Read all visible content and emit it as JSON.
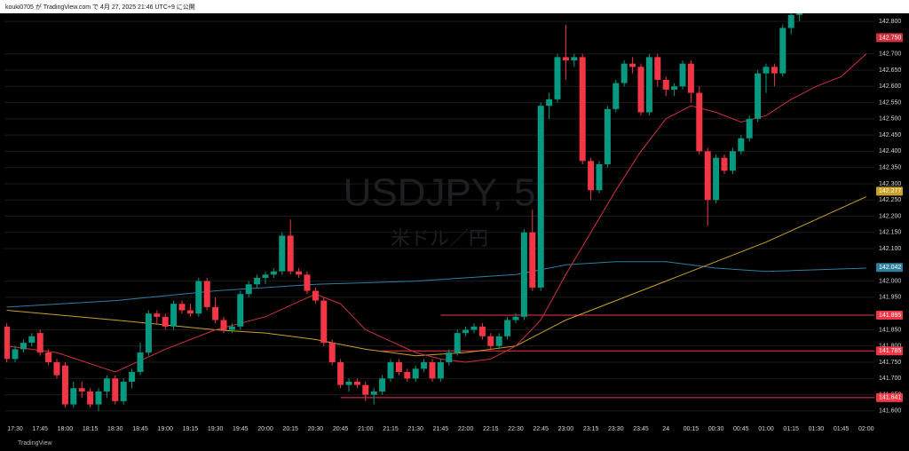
{
  "header": "kouki0705 が TradingView.com で 4月 27, 2025 21:46 UTC+9 に公開",
  "watermark": {
    "symbol": "USDJPY, 5",
    "name": "米ドル／円"
  },
  "footer": "TradingView",
  "chart_data": {
    "type": "candlestick",
    "categories": [
      "17:25",
      "17:30",
      "17:35",
      "17:40",
      "17:45",
      "17:50",
      "17:55",
      "18:00",
      "18:05",
      "18:10",
      "18:15",
      "18:20",
      "18:25",
      "18:30",
      "18:35",
      "18:40",
      "18:45",
      "18:50",
      "18:55",
      "19:00",
      "19:05",
      "19:10",
      "19:15",
      "19:20",
      "19:25",
      "19:30",
      "19:35",
      "19:40",
      "19:45",
      "19:50",
      "19:55",
      "20:00",
      "20:05",
      "20:10",
      "20:15",
      "20:20",
      "20:25",
      "20:30",
      "20:35",
      "20:40",
      "20:45",
      "20:50",
      "20:55",
      "21:00",
      "21:05",
      "21:10",
      "21:15",
      "21:20",
      "21:25",
      "21:30",
      "21:35",
      "21:40",
      "21:45",
      "21:50",
      "21:55",
      "22:00",
      "22:05",
      "22:10",
      "22:15",
      "22:20",
      "22:25",
      "22:30",
      "22:35",
      "22:40",
      "22:45",
      "22:50",
      "22:55",
      "23:00",
      "23:05",
      "23:10",
      "23:15",
      "23:20",
      "23:25",
      "23:30",
      "23:35",
      "23:40",
      "23:45",
      "23:50",
      "23:55",
      "00:00",
      "00:05",
      "00:10",
      "00:15",
      "00:20",
      "00:25",
      "00:30",
      "00:35",
      "00:40",
      "00:45",
      "00:50",
      "00:55",
      "01:00",
      "01:05",
      "01:10",
      "01:15",
      "01:20"
    ],
    "open": [
      141.86,
      141.76,
      141.79,
      141.81,
      141.84,
      141.78,
      141.75,
      141.74,
      141.62,
      141.67,
      141.66,
      141.62,
      141.66,
      141.7,
      141.63,
      141.69,
      141.72,
      141.78,
      141.9,
      141.89,
      141.86,
      141.93,
      141.91,
      141.9,
      142.0,
      141.92,
      141.88,
      141.85,
      141.86,
      141.96,
      141.99,
      142.01,
      142.02,
      142.03,
      142.14,
      142.03,
      142.02,
      141.97,
      141.94,
      141.81,
      141.75,
      141.68,
      141.69,
      141.68,
      141.65,
      141.66,
      141.7,
      141.75,
      141.72,
      141.7,
      141.73,
      141.75,
      141.7,
      141.75,
      141.78,
      141.84,
      141.85,
      141.86,
      141.83,
      141.8,
      141.83,
      141.88,
      141.89,
      142.15,
      141.98,
      142.54,
      142.56,
      142.69,
      142.68,
      142.69,
      142.37,
      142.28,
      142.36,
      142.53,
      142.61,
      142.67,
      142.66,
      142.52,
      142.69,
      142.62,
      142.59,
      142.6,
      142.67,
      142.58,
      142.4,
      142.25,
      142.38,
      142.34,
      142.4,
      142.44,
      142.5,
      142.64,
      142.66,
      142.64,
      142.78,
      142.82
    ],
    "high": [
      141.87,
      141.8,
      141.82,
      141.84,
      141.85,
      141.79,
      141.76,
      141.75,
      141.69,
      141.69,
      141.67,
      141.67,
      141.71,
      141.71,
      141.7,
      141.73,
      141.81,
      141.91,
      141.91,
      141.9,
      141.94,
      141.94,
      141.93,
      142.01,
      142.01,
      141.95,
      141.89,
      141.87,
      141.97,
      142.0,
      142.02,
      142.03,
      142.04,
      142.15,
      142.19,
      142.04,
      142.03,
      141.98,
      141.95,
      141.82,
      141.76,
      141.7,
      141.7,
      141.69,
      141.67,
      141.71,
      141.76,
      141.76,
      141.73,
      141.74,
      141.76,
      141.76,
      141.76,
      141.79,
      141.85,
      141.86,
      141.87,
      141.87,
      141.84,
      141.84,
      141.89,
      141.9,
      142.16,
      142.22,
      142.55,
      142.58,
      142.7,
      142.79,
      142.7,
      142.7,
      142.38,
      142.37,
      142.54,
      142.62,
      142.68,
      142.69,
      142.67,
      142.7,
      142.7,
      142.63,
      142.61,
      142.68,
      142.68,
      142.6,
      142.41,
      142.39,
      142.39,
      142.41,
      142.45,
      142.51,
      142.65,
      142.67,
      142.67,
      142.79,
      142.84,
      142.86
    ],
    "low": [
      141.75,
      141.75,
      141.78,
      141.8,
      141.77,
      141.74,
      141.7,
      141.61,
      141.61,
      141.64,
      141.61,
      141.6,
      141.64,
      141.62,
      141.62,
      141.67,
      141.71,
      141.77,
      141.87,
      141.85,
      141.85,
      141.9,
      141.89,
      141.89,
      141.91,
      141.87,
      141.84,
      141.84,
      141.85,
      141.95,
      141.98,
      141.99,
      142.01,
      142.02,
      142.02,
      142.01,
      141.96,
      141.93,
      141.8,
      141.74,
      141.67,
      141.66,
      141.67,
      141.63,
      141.62,
      141.65,
      141.69,
      141.71,
      141.69,
      141.69,
      141.72,
      141.69,
      141.69,
      141.74,
      141.77,
      141.83,
      141.84,
      141.82,
      141.79,
      141.79,
      141.82,
      141.87,
      141.88,
      141.97,
      141.97,
      142.5,
      142.55,
      142.62,
      142.66,
      142.36,
      142.25,
      142.27,
      142.35,
      142.52,
      142.6,
      142.64,
      142.51,
      142.51,
      142.6,
      142.57,
      142.57,
      142.59,
      142.55,
      142.39,
      142.17,
      142.24,
      142.33,
      142.33,
      142.39,
      142.43,
      142.49,
      142.58,
      142.6,
      142.63,
      142.76,
      142.8
    ],
    "close": [
      141.76,
      141.79,
      141.81,
      141.83,
      141.78,
      141.75,
      141.71,
      141.62,
      141.67,
      141.66,
      141.62,
      141.66,
      141.7,
      141.63,
      141.69,
      141.72,
      141.78,
      141.9,
      141.89,
      141.86,
      141.93,
      141.91,
      141.9,
      142.0,
      141.92,
      141.88,
      141.85,
      141.86,
      141.96,
      141.99,
      142.01,
      142.02,
      142.03,
      142.14,
      142.03,
      142.02,
      141.97,
      141.94,
      141.81,
      141.75,
      141.68,
      141.69,
      141.68,
      141.65,
      141.66,
      141.7,
      141.75,
      141.72,
      141.7,
      141.73,
      141.75,
      141.7,
      141.75,
      141.78,
      141.84,
      141.85,
      141.86,
      141.83,
      141.8,
      141.83,
      141.88,
      141.89,
      142.15,
      141.98,
      142.54,
      142.56,
      142.69,
      142.68,
      142.69,
      142.37,
      142.28,
      142.36,
      142.53,
      142.61,
      142.67,
      142.66,
      142.52,
      142.69,
      142.62,
      142.59,
      142.6,
      142.67,
      142.58,
      142.4,
      142.25,
      142.38,
      142.34,
      142.4,
      142.44,
      142.5,
      142.64,
      142.66,
      142.64,
      142.78,
      142.82,
      142.85
    ],
    "up_color": "#089981",
    "down_color": "#f23645",
    "overlays": [
      {
        "color": "#2e7fa0",
        "x": [
          "17:25",
          "18:30",
          "19:30",
          "20:30",
          "21:30",
          "22:30",
          "23:00",
          "23:30",
          "00:00",
          "00:30",
          "01:00",
          "02:00"
        ],
        "values": [
          141.92,
          141.94,
          141.97,
          141.99,
          142.0,
          142.02,
          142.05,
          142.06,
          142.06,
          142.04,
          142.03,
          142.04
        ]
      },
      {
        "color": "#c9a227",
        "x": [
          "17:25",
          "18:30",
          "19:30",
          "20:00",
          "20:30",
          "21:00",
          "21:30",
          "22:00",
          "22:30",
          "23:00",
          "23:30",
          "00:00",
          "00:30",
          "01:00",
          "01:30",
          "02:00"
        ],
        "values": [
          141.91,
          141.88,
          141.85,
          141.84,
          141.82,
          141.79,
          141.77,
          141.78,
          141.8,
          141.88,
          141.94,
          142.0,
          142.06,
          142.12,
          142.19,
          142.26
        ]
      },
      {
        "color": "#d0303f",
        "x": [
          "17:25",
          "17:55",
          "18:30",
          "19:00",
          "19:30",
          "20:00",
          "20:30",
          "20:45",
          "21:00",
          "21:30",
          "21:45",
          "22:00",
          "22:15",
          "22:30",
          "22:45",
          "23:00",
          "23:15",
          "23:30",
          "23:45",
          "00:00",
          "00:15",
          "00:30",
          "00:45",
          "01:00",
          "01:15",
          "01:30",
          "01:45",
          "02:00"
        ],
        "values": [
          141.8,
          141.78,
          141.72,
          141.79,
          141.85,
          141.89,
          141.96,
          141.93,
          141.85,
          141.78,
          141.76,
          141.75,
          141.76,
          141.8,
          141.88,
          142.02,
          142.15,
          142.28,
          142.4,
          142.5,
          142.54,
          142.52,
          142.49,
          142.51,
          142.56,
          142.6,
          142.63,
          142.7
        ]
      }
    ],
    "levels": [
      {
        "value": 141.895,
        "start": "21:45"
      },
      {
        "value": 141.785,
        "start": "21:10"
      },
      {
        "value": 141.641,
        "start": "20:45"
      }
    ],
    "price_labels": [
      {
        "value": 142.75,
        "label": "142.750",
        "color": "#d0303f"
      },
      {
        "value": 142.277,
        "label": "142.277",
        "color": "#c9a227"
      },
      {
        "value": 142.042,
        "label": "142.042",
        "color": "#2e7fa0"
      },
      {
        "value": 141.895,
        "label": "141.895",
        "color": "#f23645"
      },
      {
        "value": 141.785,
        "label": "141.785",
        "color": "#f23645"
      },
      {
        "value": 141.641,
        "label": "141.641",
        "color": "#f23645"
      }
    ],
    "ylim": [
      141.575,
      142.825
    ],
    "yticks": [
      {
        "value": 141.6,
        "label": "141.600"
      },
      {
        "value": 141.65,
        "label": "141.650"
      },
      {
        "value": 141.7,
        "label": "141.700"
      },
      {
        "value": 141.75,
        "label": "141.750"
      },
      {
        "value": 141.8,
        "label": "141.800"
      },
      {
        "value": 141.85,
        "label": "141.850"
      },
      {
        "value": 141.95,
        "label": "141.950"
      },
      {
        "value": 142.0,
        "label": "142.000"
      },
      {
        "value": 142.1,
        "label": "142.100"
      },
      {
        "value": 142.15,
        "label": "142.150"
      },
      {
        "value": 142.2,
        "label": "142.200"
      },
      {
        "value": 142.25,
        "label": "142.250"
      },
      {
        "value": 142.3,
        "label": "142.300"
      },
      {
        "value": 142.35,
        "label": "142.350"
      },
      {
        "value": 142.4,
        "label": "142.400"
      },
      {
        "value": 142.45,
        "label": "142.450"
      },
      {
        "value": 142.5,
        "label": "142.500"
      },
      {
        "value": 142.55,
        "label": "142.550"
      },
      {
        "value": 142.6,
        "label": "142.600"
      },
      {
        "value": 142.65,
        "label": "142.650"
      },
      {
        "value": 142.7,
        "label": "142.700"
      },
      {
        "value": 142.8,
        "label": "142.800"
      }
    ],
    "xtick_labels": [
      "17:30",
      "17:45",
      "18:00",
      "18:15",
      "18:30",
      "18:45",
      "19:00",
      "19:15",
      "19:30",
      "19:45",
      "20:00",
      "20:15",
      "20:30",
      "20:45",
      "21:00",
      "21:15",
      "21:30",
      "21:45",
      "22:00",
      "22:15",
      "22:30",
      "22:45",
      "23:00",
      "23:15",
      "23:30",
      "23:45",
      "24",
      "00:15",
      "00:30",
      "00:45",
      "01:00",
      "01:15",
      "01:30",
      "01:45",
      "02:00"
    ],
    "grid": true
  }
}
